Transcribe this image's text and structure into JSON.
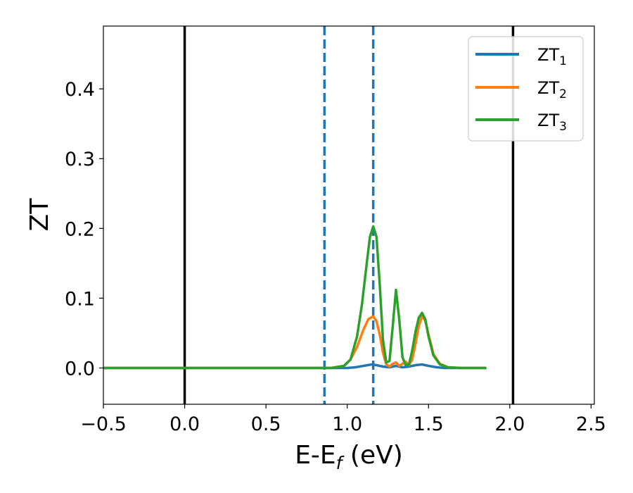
{
  "chart_data": {
    "type": "line",
    "xlabel": "E-E",
    "xlabel_sub": "f",
    "xlabel_unit": " (eV)",
    "ylabel": "ZT",
    "xlim": [
      -0.5,
      2.52
    ],
    "ylim": [
      -0.052,
      0.49
    ],
    "x_ticks": [
      -0.5,
      0.0,
      0.5,
      1.0,
      1.5,
      2.0,
      2.5
    ],
    "x_tick_labels": [
      "−0.5",
      "0.0",
      "0.5",
      "1.0",
      "1.5",
      "2.0",
      "2.5"
    ],
    "y_ticks": [
      0.0,
      0.1,
      0.2,
      0.3,
      0.4
    ],
    "y_tick_labels": [
      "0.0",
      "0.1",
      "0.2",
      "0.3",
      "0.4"
    ],
    "grid": false,
    "legend_position": "top-right",
    "vertical_lines": [
      {
        "x": 0.0,
        "style": "solid",
        "color": "#000000"
      },
      {
        "x": 2.02,
        "style": "solid",
        "color": "#000000"
      },
      {
        "x": 0.86,
        "style": "dashed",
        "color": "#1f77b4"
      },
      {
        "x": 1.16,
        "style": "dashed",
        "color": "#1f77b4"
      }
    ],
    "series": [
      {
        "name": "ZT",
        "name_sub": "1",
        "color": "#1f77b4",
        "x": [
          -0.5,
          0.8,
          1.0,
          1.05,
          1.1,
          1.15,
          1.18,
          1.22,
          1.26,
          1.3,
          1.34,
          1.38,
          1.42,
          1.46,
          1.5,
          1.55,
          1.6,
          1.7,
          1.85
        ],
        "y": [
          0,
          0,
          0,
          0.001,
          0.003,
          0.005,
          0.004,
          0.002,
          0.001,
          0.003,
          0.001,
          0.002,
          0.004,
          0.005,
          0.003,
          0.001,
          0,
          0,
          0
        ]
      },
      {
        "name": "ZT",
        "name_sub": "2",
        "color": "#ff7f0e",
        "x": [
          -0.5,
          0.9,
          0.98,
          1.02,
          1.06,
          1.1,
          1.13,
          1.16,
          1.18,
          1.2,
          1.22,
          1.24,
          1.26,
          1.28,
          1.3,
          1.32,
          1.34,
          1.36,
          1.38,
          1.4,
          1.42,
          1.44,
          1.46,
          1.48,
          1.5,
          1.53,
          1.57,
          1.62,
          1.7,
          1.85
        ],
        "y": [
          0,
          0,
          0.003,
          0.012,
          0.03,
          0.055,
          0.07,
          0.074,
          0.067,
          0.048,
          0.022,
          0.005,
          0.002,
          0.006,
          0.008,
          0.003,
          0.006,
          0.009,
          0.004,
          0.012,
          0.035,
          0.06,
          0.074,
          0.068,
          0.048,
          0.02,
          0.006,
          0.001,
          0,
          0
        ]
      },
      {
        "name": "ZT",
        "name_sub": "3",
        "color": "#2ca02c",
        "x": [
          -0.5,
          0.9,
          0.98,
          1.02,
          1.06,
          1.09,
          1.12,
          1.14,
          1.16,
          1.18,
          1.2,
          1.22,
          1.24,
          1.26,
          1.28,
          1.3,
          1.32,
          1.34,
          1.36,
          1.38,
          1.4,
          1.42,
          1.44,
          1.46,
          1.48,
          1.5,
          1.53,
          1.57,
          1.62,
          1.7,
          1.85
        ],
        "y": [
          0,
          0,
          0.003,
          0.012,
          0.045,
          0.09,
          0.15,
          0.188,
          0.203,
          0.188,
          0.12,
          0.04,
          0.008,
          0.01,
          0.06,
          0.112,
          0.07,
          0.015,
          0.004,
          0.005,
          0.025,
          0.052,
          0.072,
          0.079,
          0.07,
          0.045,
          0.018,
          0.005,
          0.001,
          0,
          0
        ]
      }
    ]
  }
}
